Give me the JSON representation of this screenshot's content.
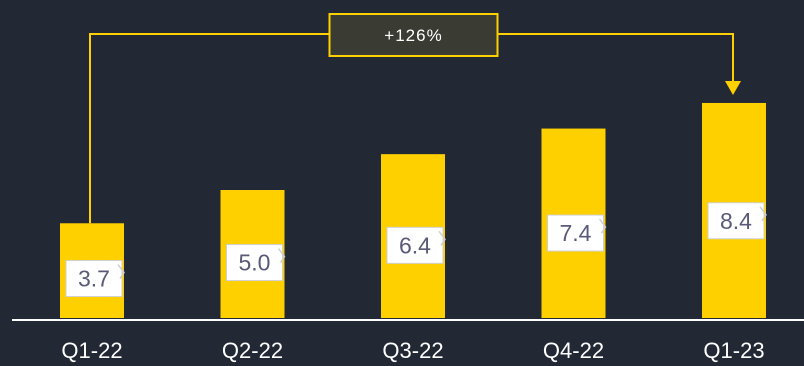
{
  "chart_data": {
    "type": "bar",
    "title": "",
    "xlabel": "",
    "ylabel": "",
    "categories": [
      "Q1-22",
      "Q2-22",
      "Q3-22",
      "Q4-22",
      "Q1-23"
    ],
    "values": [
      3.7,
      5.0,
      6.4,
      7.4,
      8.4
    ],
    "value_labels": [
      "3.7",
      "5.0",
      "6.4",
      "7.4",
      "8.4"
    ],
    "ylim": [
      0,
      10
    ],
    "grid": false,
    "legend": "none",
    "annotation": {
      "text": "+126%",
      "from_category": "Q1-22",
      "to_category": "Q1-23"
    },
    "colors": {
      "background": "#222834",
      "bar": "#FFD000",
      "label_box": "#FFFFFF",
      "label_text": "#5A5A78",
      "axis": "#FFFFFF",
      "tick_text": "#FFFFFF",
      "annotation_box": "#3A3C33",
      "annotation_text": "#FFFFFF",
      "connector": "#FFD000"
    }
  }
}
